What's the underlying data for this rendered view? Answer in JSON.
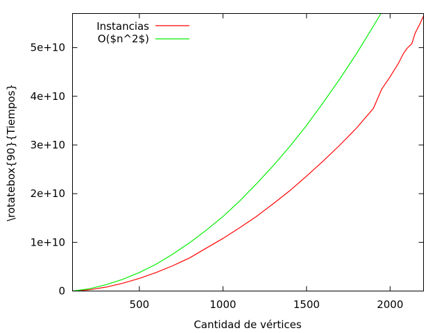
{
  "chart_data": {
    "type": "line",
    "title": "",
    "xlabel": "Cantidad de vértices",
    "ylabel": "\\rotatebox{90}{Tiempos}",
    "xlim": [
      100,
      2200
    ],
    "ylim": [
      0,
      57000000000
    ],
    "grid": false,
    "legend_position": "top-left",
    "xticks": [
      {
        "value": 500,
        "label": "500"
      },
      {
        "value": 1000,
        "label": "1000"
      },
      {
        "value": 1500,
        "label": "1500"
      },
      {
        "value": 2000,
        "label": "2000"
      }
    ],
    "yticks": [
      {
        "value": 0,
        "label": "0"
      },
      {
        "value": 10000000000,
        "label": "1e+10"
      },
      {
        "value": 20000000000,
        "label": "2e+10"
      },
      {
        "value": 30000000000,
        "label": "3e+10"
      },
      {
        "value": 40000000000,
        "label": "4e+10"
      },
      {
        "value": 50000000000,
        "label": "5e+10"
      }
    ],
    "series": [
      {
        "name": "Instancias",
        "color": "#ff0000",
        "x": [
          100,
          200,
          300,
          400,
          500,
          600,
          700,
          800,
          900,
          1000,
          1100,
          1200,
          1300,
          1400,
          1500,
          1600,
          1700,
          1800,
          1900,
          1950,
          2000,
          2050,
          2080,
          2100,
          2130,
          2150,
          2180,
          2200
        ],
        "y": [
          0,
          250000000,
          800000000,
          1600000000,
          2600000000,
          3800000000,
          5200000000,
          6800000000,
          8800000000,
          10800000000,
          13000000000,
          15300000000,
          17900000000,
          20600000000,
          23600000000,
          26700000000,
          30000000000,
          33500000000,
          37500000000,
          41500000000,
          44000000000,
          46800000000,
          48800000000,
          49800000000,
          50800000000,
          53000000000,
          55000000000,
          56500000000
        ]
      },
      {
        "name": "O($n^2$)",
        "color": "#00ee00",
        "x": [
          100,
          200,
          300,
          400,
          500,
          600,
          700,
          800,
          900,
          1000,
          1100,
          1200,
          1300,
          1400,
          1500,
          1600,
          1700,
          1800,
          1900,
          1945
        ],
        "y": [
          0,
          450000000,
          1300000000,
          2400000000,
          3800000000,
          5500000000,
          7600000000,
          9900000000,
          12500000000,
          15300000000,
          18500000000,
          22000000000,
          25700000000,
          29700000000,
          34000000000,
          38700000000,
          43600000000,
          48800000000,
          54400000000,
          57000000000
        ]
      }
    ]
  }
}
